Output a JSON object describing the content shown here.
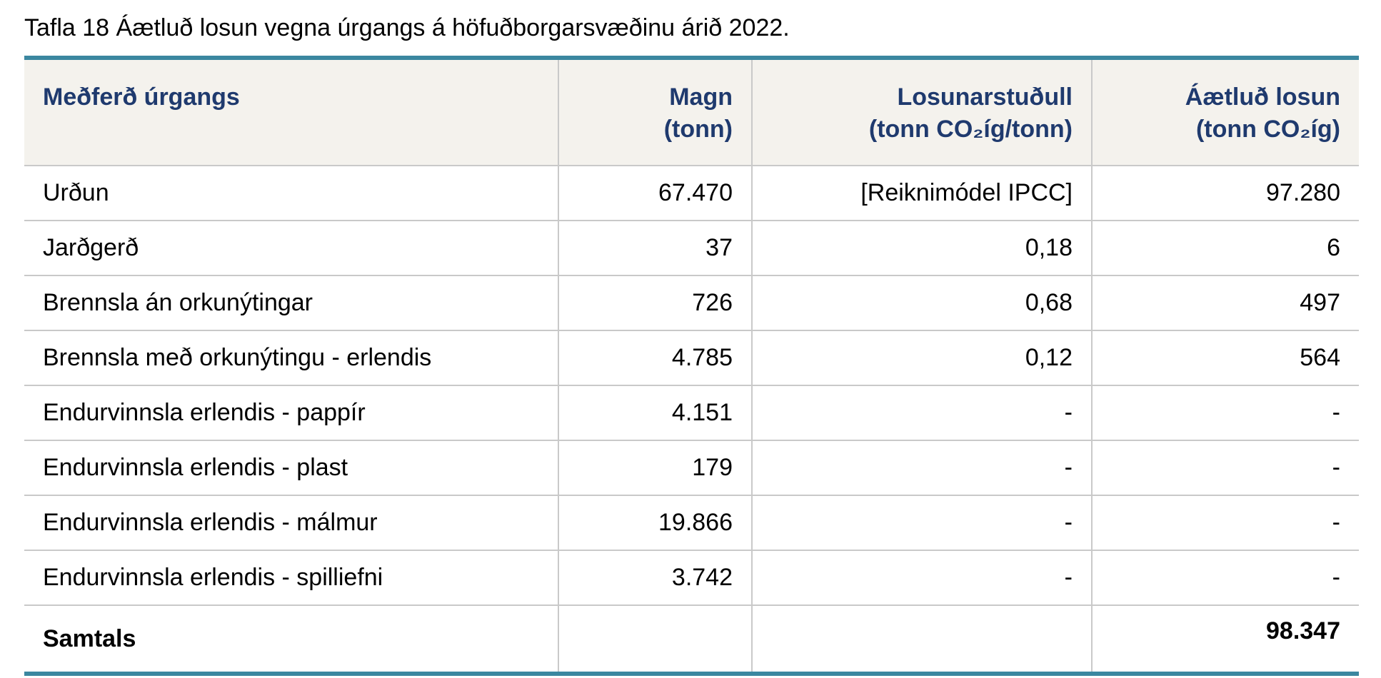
{
  "title": "Tafla 18 Áætluð losun vegna úrgangs á höfuðborgarsvæðinu árið 2022.",
  "table": {
    "header": [
      [
        "Meðferð úrgangs"
      ],
      [
        "Magn",
        "(tonn)"
      ],
      [
        "Losunarstuðull",
        "(tonn CO₂íg/tonn)"
      ],
      [
        "Áætluð losun",
        "(tonn CO₂íg)"
      ]
    ],
    "rows": [
      [
        "Urðun",
        "67.470",
        "[Reiknimódel IPCC]",
        "97.280"
      ],
      [
        "Jarðgerð",
        "37",
        "0,18",
        "6"
      ],
      [
        "Brennsla án orkunýtingar",
        "726",
        "0,68",
        "497"
      ],
      [
        "Brennsla með orkunýtingu - erlendis",
        "4.785",
        "0,12",
        "564"
      ],
      [
        "Endurvinnsla erlendis - pappír",
        "4.151",
        "-",
        "-"
      ],
      [
        "Endurvinnsla erlendis - plast",
        "179",
        "-",
        "-"
      ],
      [
        "Endurvinnsla erlendis - málmur",
        "19.866",
        "-",
        "-"
      ],
      [
        "Endurvinnsla erlendis - spilliefni",
        "3.742",
        "-",
        "-"
      ]
    ],
    "total": {
      "label": "Samtals",
      "value": "98.347"
    }
  }
}
